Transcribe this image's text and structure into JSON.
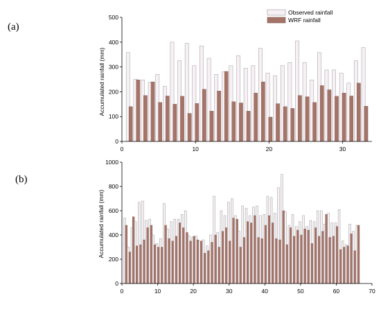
{
  "panel_labels": {
    "a": "(a)",
    "b": "(b)"
  },
  "legend": {
    "observed": "Observed rainfall",
    "wrf": "WRF rainfall"
  },
  "colors": {
    "observed": "#f7f1f5",
    "observed_edge": "#9a9a9a",
    "wrf": "#a57468",
    "wrf_edge": "#7d5249"
  },
  "chart_data": [
    {
      "type": "bar",
      "id": "a",
      "ylabel": "Accumulated rainfall (mm)",
      "xlabel": "",
      "xlim": [
        0,
        34
      ],
      "ylim": [
        0,
        500
      ],
      "xticks": [
        0,
        10,
        20,
        30
      ],
      "yticks": [
        0,
        100,
        200,
        300,
        400,
        500
      ],
      "legend_position": "top-right",
      "grid": false,
      "x": [
        1,
        2,
        3,
        4,
        5,
        6,
        7,
        8,
        9,
        10,
        11,
        12,
        13,
        14,
        15,
        16,
        17,
        18,
        19,
        20,
        21,
        22,
        23,
        24,
        25,
        26,
        27,
        28,
        29,
        30,
        31,
        32,
        33
      ],
      "series": [
        {
          "name": "Observed rainfall",
          "values": [
            358,
            250,
            248,
            238,
            270,
            222,
            400,
            325,
            395,
            305,
            385,
            335,
            270,
            280,
            305,
            345,
            295,
            305,
            375,
            275,
            265,
            305,
            318,
            405,
            318,
            248,
            358,
            288,
            288,
            275,
            235,
            325,
            378
          ]
        },
        {
          "name": "WRF rainfall",
          "values": [
            140,
            248,
            185,
            240,
            157,
            183,
            150,
            182,
            113,
            153,
            210,
            122,
            203,
            282,
            160,
            155,
            122,
            195,
            240,
            98,
            152,
            140,
            133,
            185,
            180,
            157,
            225,
            208,
            182,
            195,
            183,
            235,
            142
          ]
        }
      ]
    },
    {
      "type": "bar",
      "id": "b",
      "ylabel": "Accumulated rainfall (mm)",
      "xlabel": "",
      "xlim": [
        0,
        70
      ],
      "ylim": [
        0,
        1000
      ],
      "xticks": [
        0,
        10,
        20,
        30,
        40,
        50,
        60,
        70
      ],
      "yticks": [
        0,
        200,
        400,
        600,
        800,
        1000
      ],
      "grid": false,
      "x": [
        1,
        2,
        3,
        4,
        5,
        6,
        7,
        8,
        9,
        10,
        11,
        12,
        13,
        14,
        15,
        16,
        17,
        18,
        19,
        20,
        21,
        22,
        23,
        24,
        25,
        26,
        27,
        28,
        29,
        30,
        31,
        32,
        33,
        34,
        35,
        36,
        37,
        38,
        39,
        40,
        41,
        42,
        43,
        44,
        45,
        46,
        47,
        48,
        49,
        50,
        51,
        52,
        53,
        54,
        55,
        56,
        57,
        58,
        59,
        60,
        61,
        62,
        63,
        64,
        65,
        66
      ],
      "series": [
        {
          "name": "Observed rainfall",
          "values": [
            540,
            300,
            460,
            510,
            670,
            680,
            520,
            530,
            400,
            330,
            370,
            660,
            450,
            510,
            530,
            530,
            570,
            600,
            390,
            380,
            390,
            350,
            360,
            310,
            400,
            720,
            420,
            600,
            560,
            670,
            700,
            560,
            430,
            640,
            620,
            560,
            630,
            640,
            560,
            570,
            720,
            710,
            580,
            790,
            900,
            590,
            480,
            570,
            470,
            510,
            560,
            470,
            520,
            510,
            600,
            600,
            490,
            580,
            500,
            500,
            610,
            350,
            320,
            490,
            430,
            480
          ]
        },
        {
          "name": "WRF rainfall",
          "values": [
            480,
            260,
            550,
            310,
            320,
            360,
            460,
            480,
            320,
            300,
            300,
            480,
            370,
            350,
            390,
            500,
            460,
            420,
            350,
            390,
            360,
            350,
            250,
            270,
            340,
            400,
            300,
            430,
            460,
            350,
            540,
            530,
            300,
            380,
            510,
            500,
            560,
            380,
            370,
            480,
            560,
            500,
            370,
            360,
            600,
            320,
            460,
            390,
            440,
            400,
            450,
            440,
            330,
            460,
            390,
            430,
            570,
            380,
            390,
            470,
            280,
            300,
            310,
            410,
            270,
            480
          ]
        }
      ]
    }
  ]
}
